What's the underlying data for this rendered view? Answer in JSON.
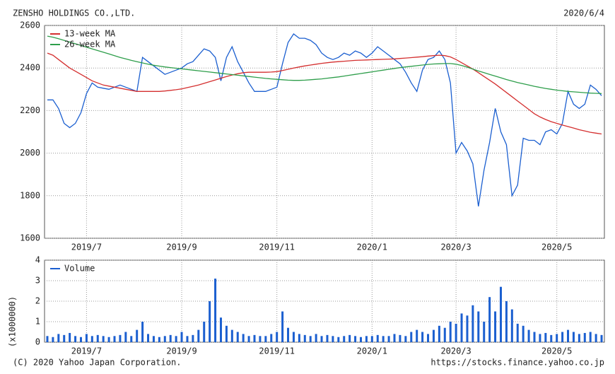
{
  "chart_data": [
    {
      "type": "line",
      "title": "ZENSHO HOLDINGS CO.,LTD.",
      "date": "2020/6/4",
      "categories": [
        null,
        null,
        null,
        null,
        null,
        null,
        null,
        "2019/7",
        null,
        null,
        null,
        null,
        null,
        null,
        null,
        null,
        null,
        null,
        null,
        null,
        null,
        null,
        null,
        null,
        "2019/9",
        null,
        null,
        null,
        null,
        null,
        null,
        null,
        null,
        null,
        null,
        null,
        null,
        null,
        null,
        null,
        null,
        "2019/11",
        null,
        null,
        null,
        null,
        null,
        null,
        null,
        null,
        null,
        null,
        null,
        null,
        null,
        null,
        null,
        null,
        "2020/1",
        null,
        null,
        null,
        null,
        null,
        null,
        null,
        null,
        null,
        null,
        null,
        null,
        null,
        null,
        "2020/3",
        null,
        null,
        null,
        null,
        null,
        null,
        null,
        null,
        null,
        null,
        null,
        null,
        null,
        null,
        null,
        null,
        null,
        "2020/5",
        null,
        null,
        null,
        null,
        null,
        null,
        null,
        null
      ],
      "series": [
        {
          "color": "#1b5fd0",
          "values": [
            2250,
            2250,
            2210,
            2140,
            2120,
            2140,
            2190,
            2280,
            2330,
            2310,
            2305,
            2300,
            2310,
            2320,
            2310,
            2300,
            2290,
            2450,
            2430,
            2410,
            2390,
            2370,
            2380,
            2390,
            2400,
            2420,
            2430,
            2460,
            2490,
            2480,
            2450,
            2340,
            2450,
            2500,
            2430,
            2380,
            2330,
            2290,
            2290,
            2290,
            2300,
            2310,
            2420,
            2520,
            2560,
            2540,
            2540,
            2530,
            2510,
            2470,
            2450,
            2440,
            2450,
            2470,
            2460,
            2480,
            2470,
            2450,
            2470,
            2500,
            2480,
            2460,
            2440,
            2420,
            2380,
            2330,
            2290,
            2390,
            2440,
            2450,
            2480,
            2440,
            2330,
            2000,
            2050,
            2010,
            1950,
            1750,
            1920,
            2050,
            2210,
            2100,
            2040,
            1800,
            1850,
            2070,
            2060,
            2060,
            2040,
            2100,
            2110,
            2090,
            2140,
            2290,
            2230,
            2210,
            2230,
            2320,
            2300,
            2270
          ]
        },
        {
          "name": "13-week MA",
          "color": "#d42f2f",
          "values": [
            2470,
            2460,
            2440,
            2420,
            2400,
            2385,
            2370,
            2355,
            2340,
            2330,
            2320,
            2315,
            2310,
            2305,
            2300,
            2295,
            2290,
            2290,
            2290,
            2290,
            2290,
            2292,
            2295,
            2298,
            2302,
            2308,
            2314,
            2320,
            2328,
            2336,
            2344,
            2352,
            2360,
            2367,
            2373,
            2378,
            2380,
            2380,
            2380,
            2380,
            2381,
            2383,
            2388,
            2394,
            2400,
            2405,
            2410,
            2414,
            2418,
            2422,
            2425,
            2428,
            2430,
            2432,
            2434,
            2436,
            2437,
            2438,
            2439,
            2440,
            2441,
            2442,
            2443,
            2445,
            2447,
            2449,
            2451,
            2453,
            2456,
            2458,
            2460,
            2458,
            2452,
            2440,
            2425,
            2410,
            2395,
            2378,
            2360,
            2343,
            2325,
            2305,
            2285,
            2265,
            2245,
            2225,
            2205,
            2185,
            2170,
            2158,
            2148,
            2140,
            2132,
            2125,
            2118,
            2110,
            2104,
            2098,
            2094,
            2090
          ]
        },
        {
          "name": "26-week MA",
          "color": "#2e9e4b",
          "values": [
            2550,
            2545,
            2538,
            2530,
            2522,
            2514,
            2506,
            2498,
            2490,
            2482,
            2474,
            2466,
            2458,
            2450,
            2443,
            2436,
            2430,
            2424,
            2418,
            2413,
            2409,
            2405,
            2402,
            2399,
            2396,
            2393,
            2390,
            2387,
            2384,
            2381,
            2378,
            2375,
            2372,
            2369,
            2366,
            2363,
            2360,
            2357,
            2354,
            2351,
            2349,
            2347,
            2345,
            2343,
            2342,
            2342,
            2343,
            2345,
            2347,
            2349,
            2352,
            2355,
            2358,
            2362,
            2366,
            2370,
            2374,
            2378,
            2382,
            2386,
            2390,
            2394,
            2398,
            2402,
            2405,
            2408,
            2411,
            2414,
            2417,
            2419,
            2420,
            2421,
            2421,
            2418,
            2412,
            2404,
            2395,
            2386,
            2378,
            2370,
            2362,
            2354,
            2346,
            2339,
            2332,
            2326,
            2320,
            2314,
            2309,
            2304,
            2300,
            2296,
            2293,
            2290,
            2288,
            2286,
            2284,
            2282,
            2281,
            2280
          ]
        }
      ],
      "ylim": [
        1600,
        2600
      ],
      "yticks": [
        1600,
        1800,
        2000,
        2200,
        2400,
        2600
      ],
      "grid": true
    },
    {
      "type": "bar",
      "ylabel": "(x1000000)",
      "categories": [
        null,
        null,
        null,
        null,
        null,
        null,
        null,
        "2019/7",
        null,
        null,
        null,
        null,
        null,
        null,
        null,
        null,
        null,
        null,
        null,
        null,
        null,
        null,
        null,
        null,
        "2019/9",
        null,
        null,
        null,
        null,
        null,
        null,
        null,
        null,
        null,
        null,
        null,
        null,
        null,
        null,
        null,
        null,
        "2019/11",
        null,
        null,
        null,
        null,
        null,
        null,
        null,
        null,
        null,
        null,
        null,
        null,
        null,
        null,
        null,
        null,
        "2020/1",
        null,
        null,
        null,
        null,
        null,
        null,
        null,
        null,
        null,
        null,
        null,
        null,
        null,
        null,
        "2020/3",
        null,
        null,
        null,
        null,
        null,
        null,
        null,
        null,
        null,
        null,
        null,
        null,
        null,
        null,
        null,
        null,
        null,
        "2020/5",
        null,
        null,
        null,
        null,
        null,
        null,
        null,
        null
      ],
      "series": [
        {
          "name": "Volume",
          "color": "#1b5fd0",
          "values": [
            0.3,
            0.25,
            0.4,
            0.35,
            0.45,
            0.3,
            0.25,
            0.4,
            0.3,
            0.35,
            0.3,
            0.25,
            0.3,
            0.35,
            0.5,
            0.3,
            0.6,
            1.0,
            0.4,
            0.3,
            0.25,
            0.3,
            0.35,
            0.3,
            0.5,
            0.3,
            0.35,
            0.6,
            1.0,
            2.0,
            3.1,
            1.2,
            0.8,
            0.6,
            0.5,
            0.4,
            0.3,
            0.35,
            0.3,
            0.3,
            0.4,
            0.5,
            1.5,
            0.7,
            0.5,
            0.4,
            0.35,
            0.3,
            0.4,
            0.3,
            0.35,
            0.3,
            0.25,
            0.3,
            0.35,
            0.3,
            0.25,
            0.3,
            0.3,
            0.35,
            0.3,
            0.3,
            0.4,
            0.35,
            0.3,
            0.5,
            0.6,
            0.5,
            0.4,
            0.6,
            0.8,
            0.7,
            1.0,
            0.9,
            1.4,
            1.3,
            1.8,
            1.5,
            1.0,
            2.2,
            1.5,
            2.7,
            2.0,
            1.6,
            0.9,
            0.8,
            0.6,
            0.5,
            0.4,
            0.45,
            0.35,
            0.4,
            0.5,
            0.6,
            0.5,
            0.4,
            0.45,
            0.5,
            0.4,
            0.35
          ]
        }
      ],
      "ylim": [
        0,
        4
      ],
      "yticks": [
        0,
        1,
        2,
        3,
        4
      ],
      "grid": true
    }
  ],
  "footer": {
    "copyright": "(C) 2020 Yahoo Japan Corporation.",
    "url": "https://stocks.finance.yahoo.co.jp"
  }
}
